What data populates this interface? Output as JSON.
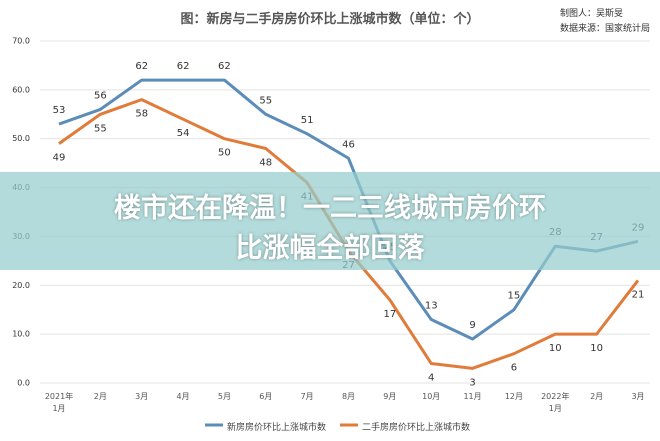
{
  "chart_data": {
    "type": "line",
    "title": "图：新房与二手房房价环比上涨城市数（单位：个）",
    "credits": [
      "制图人：吴斯旻",
      "数据来源：国家统计局"
    ],
    "banner": [
      "楼市还在降温！一二三线城市房价环",
      "比涨幅全部回落"
    ],
    "categories": [
      "2021年\n1月",
      "2月",
      "3月",
      "4月",
      "5月",
      "6月",
      "7月",
      "8月",
      "9月",
      "10月",
      "11月",
      "12月",
      "2022年\n1月",
      "2月",
      "3月"
    ],
    "series": [
      {
        "name": "新房房价环比上涨城市数",
        "color": "#5b8db8",
        "values": [
          53,
          56,
          62,
          62,
          62,
          55,
          51,
          46,
          25,
          13,
          9,
          15,
          28,
          27,
          29
        ]
      },
      {
        "name": "二手房房价环比上涨城市数",
        "color": "#e07b39",
        "values": [
          49,
          55,
          58,
          54,
          50,
          48,
          41,
          27,
          17,
          4,
          3,
          6,
          10,
          10,
          21
        ]
      }
    ],
    "ylim": [
      0,
      70
    ],
    "yticks": [
      {
        "value": 0,
        "label": "0.0"
      },
      {
        "value": 10,
        "label": "10.0"
      },
      {
        "value": 20,
        "label": "20.0"
      },
      {
        "value": 30,
        "label": "30.0"
      },
      {
        "value": 40,
        "label": "40.0"
      },
      {
        "value": 50,
        "label": "50.0"
      },
      {
        "value": 60,
        "label": "60.0"
      },
      {
        "value": 70,
        "label": "70.0"
      }
    ],
    "grid": true
  }
}
